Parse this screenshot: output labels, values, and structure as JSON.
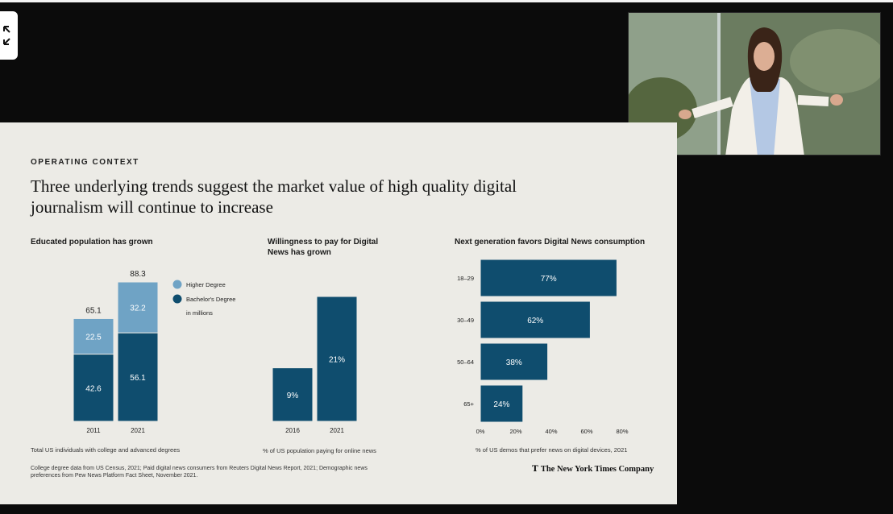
{
  "expand_icon": "expand-arrows-icon",
  "video": {
    "description_icon": "presenter-video"
  },
  "slide": {
    "eyebrow": "OPERATING CONTEXT",
    "headline": "Three underlying trends suggest the market value of high quality digital journalism will continue to increase",
    "sources": "College degree data from US Census, 2021; Paid digital news consumers from Reuters Digital News Report, 2021; Demographic news preferences from Pew News Platform Fact Sheet, November 2021.",
    "logo_mark": "T",
    "logo_text": "The New York Times Company"
  },
  "chart_data": [
    {
      "type": "bar",
      "stacked": true,
      "title": "Educated population has grown",
      "categories": [
        "2011",
        "2021"
      ],
      "series": [
        {
          "name": "Bachelor's Degree",
          "values": [
            42.6,
            56.1
          ],
          "color": "#0f4d6e"
        },
        {
          "name": "Higher Degree",
          "values": [
            22.5,
            32.2
          ],
          "color": "#6fa3c5"
        }
      ],
      "totals": [
        "65.1",
        "88.3"
      ],
      "unit_note": "in millions",
      "footnote": "Total US individuals with college and advanced degrees",
      "ylim": [
        0,
        88.3
      ]
    },
    {
      "type": "bar",
      "title": "Willingness to pay for Digital News has grown",
      "categories": [
        "2016",
        "2021"
      ],
      "values": [
        9,
        21
      ],
      "value_labels": [
        "9%",
        "21%"
      ],
      "color": "#0f4d6e",
      "footnote": "% of US population paying for online news",
      "ylim": [
        0,
        21
      ]
    },
    {
      "type": "bar",
      "orientation": "horizontal",
      "title": "Next generation favors Digital News consumption",
      "categories": [
        "18–29",
        "30–49",
        "50–64",
        "65+"
      ],
      "values": [
        77,
        62,
        38,
        24
      ],
      "value_labels": [
        "77%",
        "62%",
        "38%",
        "24%"
      ],
      "xticks": [
        "0%",
        "20%",
        "40%",
        "60%",
        "80%"
      ],
      "xlim": [
        0,
        80
      ],
      "color": "#0f4d6e",
      "footnote": "% of US demos that prefer news on digital devices, 2021"
    }
  ]
}
